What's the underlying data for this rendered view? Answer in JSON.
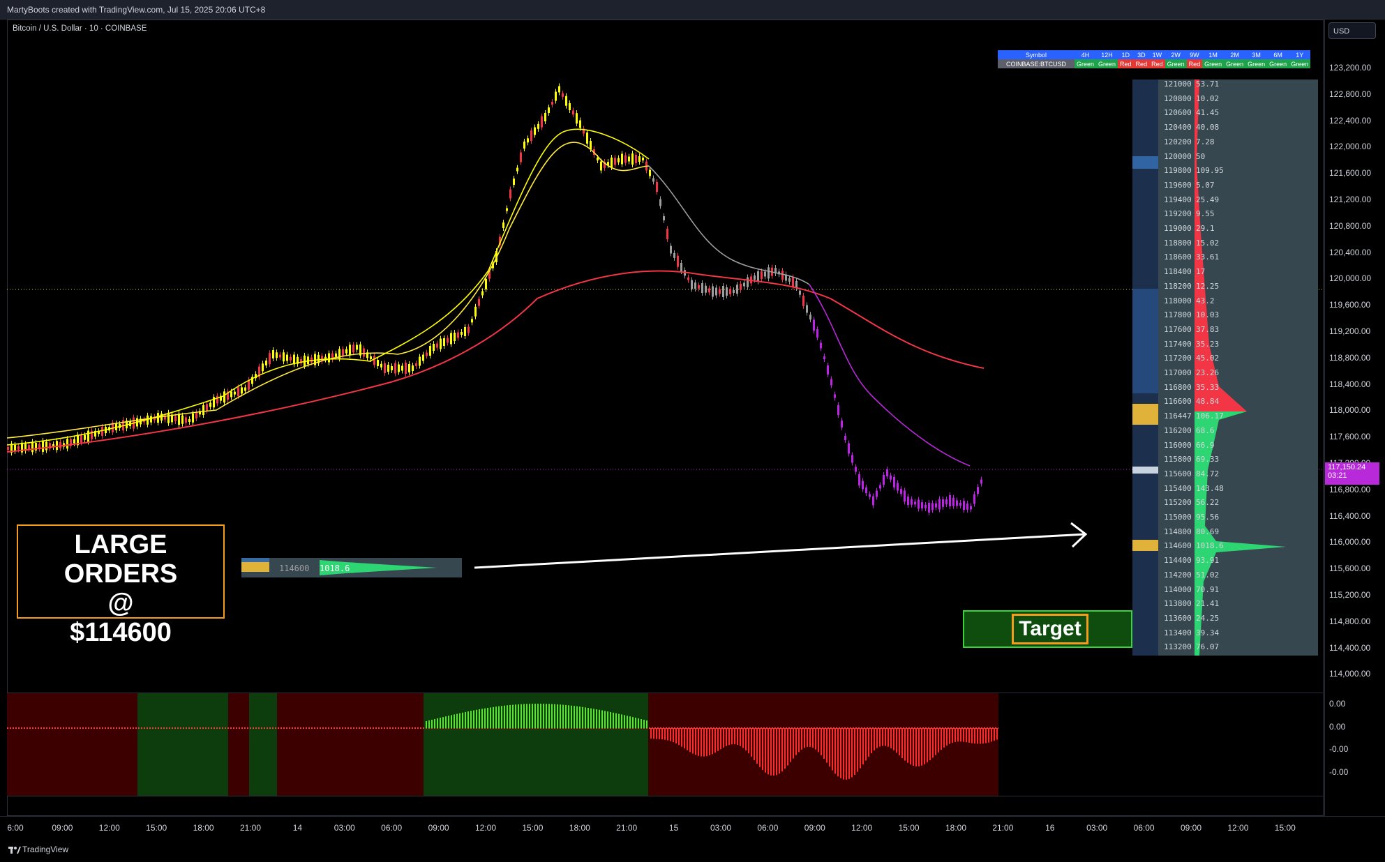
{
  "header": {
    "title": "MartyBoots created with TradingView.com, Jul 15, 2025 20:06 UTC+8"
  },
  "symbol": {
    "label": "Bitcoin / U.S. Dollar · 10 · COINBASE"
  },
  "price_axis": {
    "currency": "USD",
    "ticks": [
      "123,200.00",
      "122,800.00",
      "122,400.00",
      "122,000.00",
      "121,600.00",
      "121,200.00",
      "120,800.00",
      "120,400.00",
      "120,000.00",
      "119,600.00",
      "119,200.00",
      "118,800.00",
      "118,400.00",
      "118,000.00",
      "117,600.00",
      "117,200.00",
      "116,800.00",
      "116,400.00",
      "116,000.00",
      "115,600.00",
      "115,200.00",
      "114,800.00",
      "114,400.00",
      "114,000.00"
    ],
    "current_price": "117,150.24",
    "countdown": "03:21"
  },
  "oscillator_axis": {
    "ticks": [
      "0.00",
      "0.00",
      "-0.00",
      "-0.00"
    ]
  },
  "time_axis": {
    "ticks": [
      "6:00",
      "09:00",
      "12:00",
      "15:00",
      "18:00",
      "21:00",
      "14",
      "03:00",
      "06:00",
      "09:00",
      "12:00",
      "15:00",
      "18:00",
      "21:00",
      "15",
      "03:00",
      "06:00",
      "09:00",
      "12:00",
      "15:00",
      "18:00",
      "21:00",
      "16",
      "03:00",
      "06:00",
      "09:00",
      "12:00",
      "15:00"
    ]
  },
  "footer": {
    "brand": "TradingView"
  },
  "trend_table": {
    "headers": [
      "Symbol",
      "4H",
      "12H",
      "1D",
      "3D",
      "1W",
      "2W",
      "9W",
      "1M",
      "2M",
      "3M",
      "6M",
      "1Y"
    ],
    "row": [
      "COINBASE:BTCUSD",
      "Green",
      "Green",
      "Red",
      "Red",
      "Red",
      "Green",
      "Red",
      "Green",
      "Green",
      "Green",
      "Green",
      "Green"
    ]
  },
  "order_book": {
    "rows": [
      {
        "price": "121000",
        "qty": "53.71"
      },
      {
        "price": "120800",
        "qty": "10.02"
      },
      {
        "price": "120600",
        "qty": "41.45"
      },
      {
        "price": "120400",
        "qty": "40.08"
      },
      {
        "price": "120200",
        "qty": "7.28"
      },
      {
        "price": "120000",
        "qty": "50"
      },
      {
        "price": "119800",
        "qty": "109.95"
      },
      {
        "price": "119600",
        "qty": "5.07"
      },
      {
        "price": "119400",
        "qty": "25.49"
      },
      {
        "price": "119200",
        "qty": "9.55"
      },
      {
        "price": "119000",
        "qty": "29.1"
      },
      {
        "price": "118800",
        "qty": "15.02"
      },
      {
        "price": "118600",
        "qty": "33.61"
      },
      {
        "price": "118400",
        "qty": "17"
      },
      {
        "price": "118200",
        "qty": "12.25"
      },
      {
        "price": "118000",
        "qty": "43.2"
      },
      {
        "price": "117800",
        "qty": "10.03"
      },
      {
        "price": "117600",
        "qty": "37.83"
      },
      {
        "price": "117400",
        "qty": "35.23"
      },
      {
        "price": "117200",
        "qty": "45.02"
      },
      {
        "price": "117000",
        "qty": "23.26"
      },
      {
        "price": "116800",
        "qty": "35.33"
      },
      {
        "price": "116600",
        "qty": "48.84"
      },
      {
        "price": "116447",
        "qty": "106.17"
      },
      {
        "price": "116200",
        "qty": "68.6"
      },
      {
        "price": "116000",
        "qty": "66.9"
      },
      {
        "price": "115800",
        "qty": "69.33"
      },
      {
        "price": "115600",
        "qty": "84.72"
      },
      {
        "price": "115400",
        "qty": "143.48"
      },
      {
        "price": "115200",
        "qty": "56.22"
      },
      {
        "price": "115000",
        "qty": "95.56"
      },
      {
        "price": "114800",
        "qty": "80.69"
      },
      {
        "price": "114600",
        "qty": "1018.6"
      },
      {
        "price": "114400",
        "qty": "93.91"
      },
      {
        "price": "114200",
        "qty": "51.02"
      },
      {
        "price": "114000",
        "qty": "70.91"
      },
      {
        "price": "113800",
        "qty": "21.41"
      },
      {
        "price": "113600",
        "qty": "24.25"
      },
      {
        "price": "113400",
        "qty": "39.34"
      },
      {
        "price": "113200",
        "qty": "76.07"
      }
    ]
  },
  "annotations": {
    "large_orders": {
      "line1": "LARGE ORDERS",
      "line2": "@",
      "line3": "$114600"
    },
    "mini_book": {
      "price": "114600",
      "qty": "1018.6"
    },
    "target": "Target"
  },
  "colors": {
    "ema_fast": "#ffff00",
    "ema_slow": "#ffeb3b",
    "ema_long": "#f23645",
    "ema_purple": "#b829d9",
    "bull_candle": "#ffff00",
    "bear_candle": "#f23645",
    "purple_candle": "#c023e8",
    "bid": "#2ed573",
    "ask": "#f23645"
  }
}
